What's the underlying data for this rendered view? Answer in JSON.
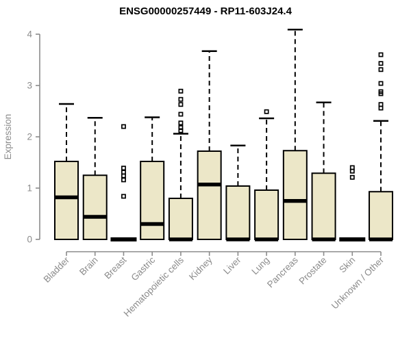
{
  "chart_data": {
    "type": "boxplot",
    "title": "ENSG00000257449 - RP11-603J24.4",
    "ylabel": "Expression",
    "xlabel": "",
    "ylim": [
      0,
      4
    ],
    "yticks": [
      0,
      1,
      2,
      3,
      4
    ],
    "grid": false,
    "legend": false,
    "colors": {
      "box_fill": "#ece7c8",
      "box_stroke": "#000000",
      "median_color": "#000000",
      "whisker_color": "#000000",
      "outlier_stroke": "#000000",
      "axis_color": "#8b8b8b",
      "title_color": "#000000"
    },
    "categories": [
      "Bladder",
      "Brain",
      "Breast",
      "Gastric",
      "Hematopoietic cells",
      "Kidney",
      "Liver",
      "Lung",
      "Pancreas",
      "Prostate",
      "Skin",
      "Unknown / Other"
    ],
    "boxes": [
      {
        "category": "Bladder",
        "whisker_low": 0,
        "q1": 0,
        "median": 0.82,
        "q3": 1.52,
        "whisker_high": 2.64,
        "outliers": []
      },
      {
        "category": "Brain",
        "whisker_low": 0,
        "q1": 0,
        "median": 0.44,
        "q3": 1.25,
        "whisker_high": 2.37,
        "outliers": []
      },
      {
        "category": "Breast",
        "whisker_low": 0,
        "q1": 0,
        "median": 0,
        "q3": 0,
        "whisker_high": 0,
        "outliers": [
          0.84,
          1.16,
          1.24,
          1.31,
          1.39,
          2.2
        ]
      },
      {
        "category": "Gastric",
        "whisker_low": 0,
        "q1": 0,
        "median": 0.3,
        "q3": 1.52,
        "whisker_high": 2.38,
        "outliers": []
      },
      {
        "category": "Hematopoietic cells",
        "whisker_low": 0,
        "q1": 0,
        "median": 0,
        "q3": 0.8,
        "whisker_high": 2.06,
        "outliers": [
          2.12,
          2.18,
          2.27,
          2.44,
          2.63,
          2.73,
          2.89
        ]
      },
      {
        "category": "Kidney",
        "whisker_low": 0,
        "q1": 0,
        "median": 1.07,
        "q3": 1.72,
        "whisker_high": 3.67,
        "outliers": []
      },
      {
        "category": "Liver",
        "whisker_low": 0,
        "q1": 0,
        "median": 0,
        "q3": 1.04,
        "whisker_high": 1.83,
        "outliers": []
      },
      {
        "category": "Lung",
        "whisker_low": 0,
        "q1": 0,
        "median": 0,
        "q3": 0.96,
        "whisker_high": 2.36,
        "outliers": [
          2.49
        ]
      },
      {
        "category": "Pancreas",
        "whisker_low": 0,
        "q1": 0,
        "median": 0.75,
        "q3": 1.73,
        "whisker_high": 4.09,
        "outliers": []
      },
      {
        "category": "Prostate",
        "whisker_low": 0,
        "q1": 0,
        "median": 0,
        "q3": 1.29,
        "whisker_high": 2.67,
        "outliers": []
      },
      {
        "category": "Skin",
        "whisker_low": 0,
        "q1": 0,
        "median": 0,
        "q3": 0,
        "whisker_high": 0,
        "outliers": [
          1.21,
          1.33,
          1.4
        ]
      },
      {
        "category": "Unknown / Other",
        "whisker_low": 0,
        "q1": 0,
        "median": 0,
        "q3": 0.93,
        "whisker_high": 2.31,
        "outliers": [
          2.56,
          2.63,
          2.84,
          2.88,
          3.04,
          3.31,
          3.43,
          3.6
        ]
      }
    ]
  }
}
